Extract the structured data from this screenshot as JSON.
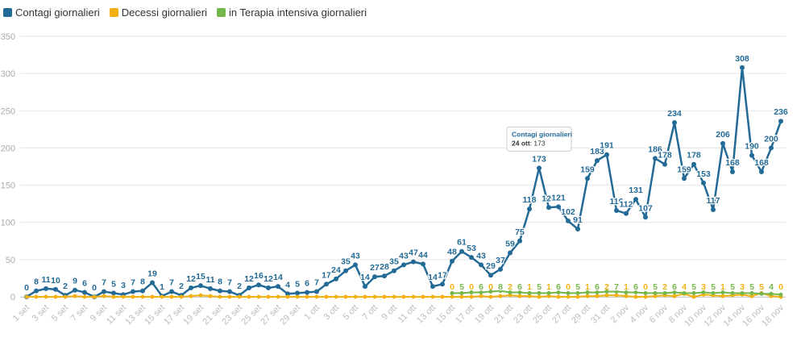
{
  "chart_data": {
    "type": "line",
    "categories": [
      "1 set",
      "2 set",
      "3 set",
      "4 set",
      "5 set",
      "6 set",
      "7 set",
      "8 set",
      "9 set",
      "10 set",
      "11 set",
      "12 set",
      "13 set",
      "14 set",
      "15 set",
      "16 set",
      "17 set",
      "18 set",
      "19 set",
      "20 set",
      "21 set",
      "22 set",
      "23 set",
      "24 set",
      "25 set",
      "26 set",
      "27 set",
      "28 set",
      "29 set",
      "30 set",
      "1 ott",
      "2 ott",
      "3 ott",
      "4 ott",
      "5 ott",
      "6 ott",
      "7 ott",
      "8 ott",
      "9 ott",
      "10 ott",
      "11 ott",
      "12 ott",
      "13 ott",
      "14 ott",
      "15 ott",
      "16 ott",
      "17 ott",
      "18 ott",
      "19 ott",
      "20 ott",
      "21 ott",
      "22 ott",
      "23 ott",
      "24 ott",
      "25 ott",
      "26 ott",
      "27 ott",
      "28 ott",
      "29 ott",
      "30 ott",
      "31 ott",
      "1 nov",
      "2 nov",
      "3 nov",
      "4 nov",
      "5 nov",
      "6 nov",
      "7 nov",
      "8 nov",
      "9 nov",
      "10 nov",
      "11 nov",
      "12 nov",
      "13 nov",
      "14 nov",
      "15 nov",
      "16 nov",
      "17 nov",
      "18 nov"
    ],
    "series": [
      {
        "name": "Contagi giornalieri",
        "color": "#236a96",
        "values": [
          0,
          8,
          11,
          10,
          2,
          9,
          6,
          0,
          7,
          5,
          3,
          7,
          8,
          19,
          1,
          7,
          2,
          12,
          15,
          11,
          8,
          7,
          2,
          12,
          16,
          12,
          14,
          4,
          5,
          6,
          7,
          17,
          24,
          35,
          43,
          14,
          27,
          28,
          35,
          43,
          47,
          44,
          14,
          17,
          48,
          61,
          53,
          43,
          29,
          37,
          59,
          75,
          118,
          173,
          120,
          121,
          102,
          91,
          159,
          183,
          191,
          116,
          112,
          131,
          107,
          186,
          178,
          234,
          159,
          178,
          153,
          117,
          206,
          168,
          308,
          190,
          168,
          200,
          236
        ]
      },
      {
        "name": "Decessi giornalieri",
        "color": "#f2b111",
        "values": [
          0,
          0,
          0,
          0,
          0,
          1,
          0,
          0,
          1,
          0,
          0,
          0,
          0,
          0,
          0,
          0,
          0,
          1,
          2,
          1,
          0,
          0,
          0,
          0,
          0,
          0,
          0,
          0,
          0,
          0,
          0,
          0,
          0,
          0,
          0,
          0,
          0,
          0,
          0,
          0,
          0,
          0,
          0,
          0,
          0,
          0,
          0,
          1,
          0,
          1,
          2,
          1,
          1,
          0,
          1,
          0,
          0,
          0,
          1,
          1,
          2,
          2,
          1,
          0,
          0,
          1,
          2,
          1,
          4,
          0,
          3,
          2,
          1,
          2,
          3,
          1,
          5,
          1,
          0
        ]
      },
      {
        "name": "in Terapia intensiva giornalieri",
        "color": "#73b64b",
        "values": [
          null,
          null,
          null,
          null,
          null,
          null,
          null,
          null,
          null,
          null,
          null,
          null,
          null,
          null,
          null,
          null,
          null,
          null,
          null,
          null,
          null,
          null,
          null,
          null,
          null,
          null,
          null,
          null,
          null,
          null,
          null,
          null,
          null,
          null,
          null,
          null,
          null,
          null,
          null,
          null,
          null,
          null,
          null,
          null,
          5,
          5,
          6,
          6,
          7,
          8,
          6,
          6,
          5,
          5,
          5,
          6,
          5,
          5,
          6,
          6,
          7,
          7,
          6,
          6,
          5,
          5,
          5,
          6,
          5,
          5,
          6,
          5,
          6,
          5,
          5,
          5,
          4,
          4,
          3
        ]
      }
    ],
    "ylim": [
      0,
      350
    ],
    "yticks": [
      0,
      50,
      100,
      150,
      200,
      250,
      300,
      350
    ],
    "grid": true,
    "legend": "top-left",
    "tooltip": {
      "title": "Contagi giornalieri",
      "index": 53
    }
  }
}
